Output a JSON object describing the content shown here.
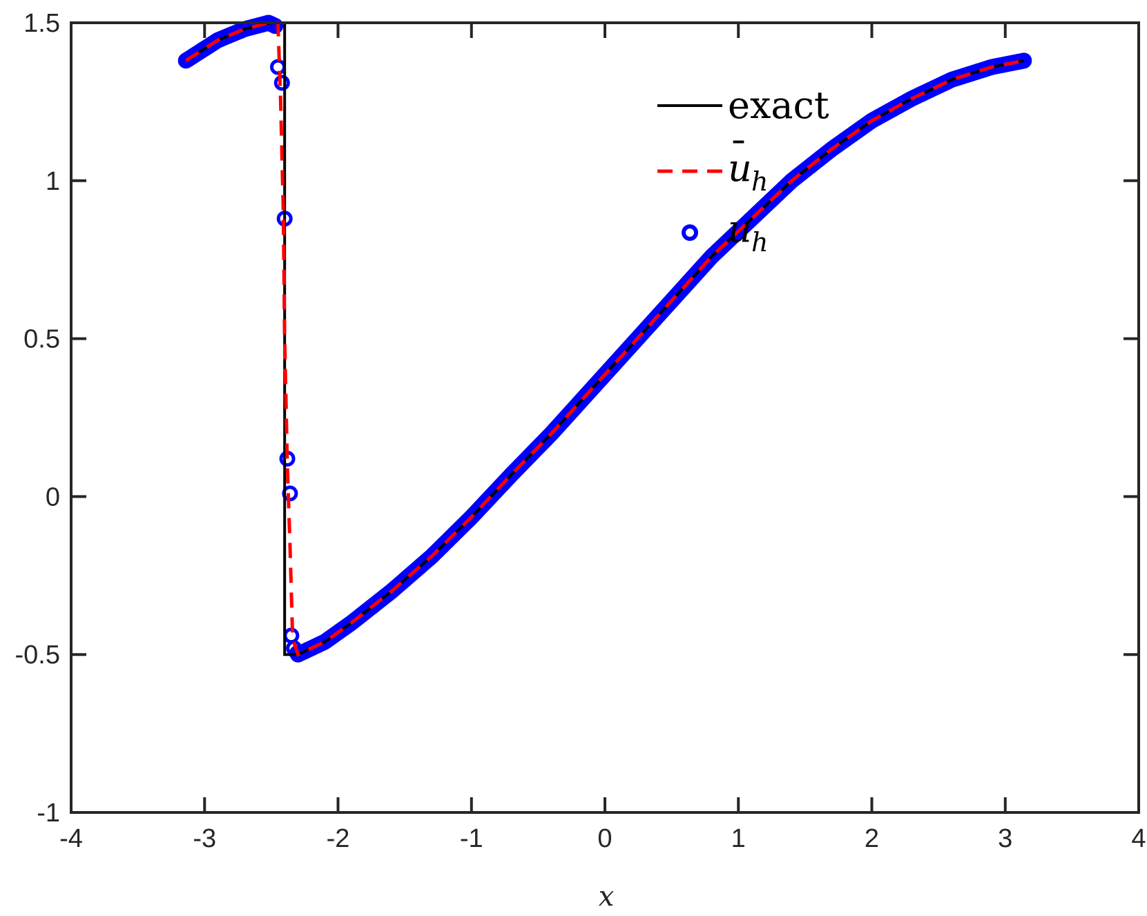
{
  "chart_data": {
    "type": "line",
    "title": "",
    "xlabel": "x",
    "ylabel": "",
    "xlim": [
      -4,
      4
    ],
    "ylim": [
      -1,
      1.5
    ],
    "xticks": [
      -4,
      -3,
      -2,
      -1,
      0,
      1,
      2,
      3,
      4
    ],
    "yticks": [
      -1,
      -0.5,
      0,
      0.5,
      1,
      1.5
    ],
    "xtick_labels": [
      "-4",
      "-3",
      "-2",
      "-1",
      "0",
      "1",
      "2",
      "3",
      "4"
    ],
    "ytick_labels": [
      "-1",
      "-0.5",
      "0",
      "0.5",
      "1",
      "1.5"
    ],
    "grid": false,
    "legend_position": "top-right",
    "series": [
      {
        "name": "exact",
        "style": "solid",
        "color": "#000000",
        "x": [
          -3.14,
          -2.9,
          -2.7,
          -2.5,
          -2.4,
          -2.4,
          -2.3,
          -2.1,
          -1.9,
          -1.6,
          -1.3,
          -1.0,
          -0.7,
          -0.4,
          -0.1,
          0.2,
          0.5,
          0.8,
          1.1,
          1.4,
          1.7,
          2.0,
          2.3,
          2.6,
          2.9,
          3.14
        ],
        "y": [
          1.38,
          1.445,
          1.48,
          1.5,
          1.5,
          -0.5,
          -0.5,
          -0.46,
          -0.4,
          -0.3,
          -0.19,
          -0.065,
          0.07,
          0.2,
          0.34,
          0.48,
          0.62,
          0.76,
          0.88,
          1.0,
          1.1,
          1.19,
          1.26,
          1.32,
          1.36,
          1.38
        ]
      },
      {
        "name": "ū_h",
        "style": "dashed",
        "color": "#ff0000",
        "x": [
          -3.14,
          -2.9,
          -2.7,
          -2.52,
          -2.45,
          -2.43,
          -2.41,
          -2.4,
          -2.38,
          -2.36,
          -2.34,
          -2.3,
          -2.1,
          -1.9,
          -1.6,
          -1.3,
          -1.0,
          -0.7,
          -0.4,
          -0.1,
          0.2,
          0.5,
          0.8,
          1.1,
          1.4,
          1.7,
          2.0,
          2.3,
          2.6,
          2.9,
          3.14
        ],
        "y": [
          1.38,
          1.445,
          1.48,
          1.5,
          1.5,
          1.25,
          0.9,
          0.5,
          0.1,
          -0.15,
          -0.45,
          -0.5,
          -0.46,
          -0.4,
          -0.3,
          -0.19,
          -0.065,
          0.07,
          0.2,
          0.34,
          0.48,
          0.62,
          0.76,
          0.88,
          1.0,
          1.1,
          1.19,
          1.26,
          1.32,
          1.36,
          1.38
        ]
      },
      {
        "name": "u_h",
        "style": "markers",
        "marker": "circle-open",
        "color": "#0000ff",
        "x": [
          -3.14,
          -2.9,
          -2.7,
          -2.52,
          -2.47,
          -2.45,
          -2.42,
          -2.4,
          -2.38,
          -2.36,
          -2.35,
          -2.33,
          -2.3,
          -2.1,
          -1.9,
          -1.6,
          -1.3,
          -1.0,
          -0.7,
          -0.4,
          -0.1,
          0.2,
          0.5,
          0.8,
          1.1,
          1.4,
          1.7,
          2.0,
          2.3,
          2.6,
          2.9,
          3.14
        ],
        "y": [
          1.38,
          1.445,
          1.48,
          1.5,
          1.49,
          1.36,
          1.31,
          0.88,
          0.12,
          0.01,
          -0.44,
          -0.48,
          -0.5,
          -0.46,
          -0.4,
          -0.3,
          -0.19,
          -0.065,
          0.07,
          0.2,
          0.34,
          0.48,
          0.62,
          0.76,
          0.88,
          1.0,
          1.1,
          1.19,
          1.26,
          1.32,
          1.36,
          1.38
        ]
      }
    ]
  },
  "legend": {
    "exact": "exact",
    "uh_bar_base": "u",
    "uh_bar_accent": "¯",
    "uh_sub": "h",
    "uh_base": "u",
    "uh_sub2": "h"
  }
}
